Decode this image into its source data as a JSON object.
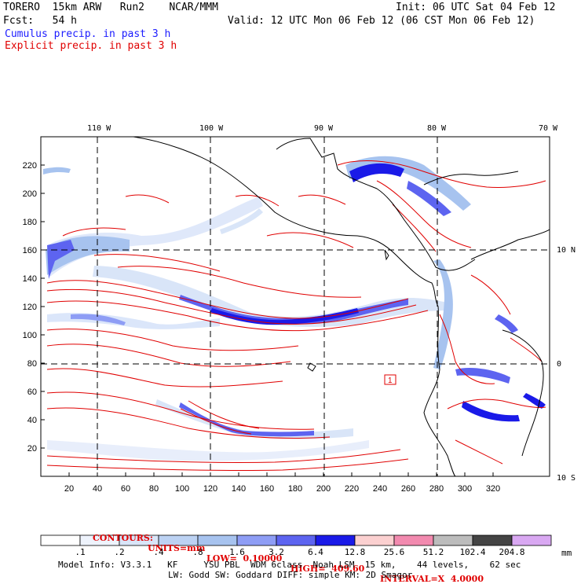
{
  "header": {
    "model": "TORERO  15km ARW   Run2    NCAR/MMM",
    "init": "Init: 06 UTC Sat 04 Feb 12",
    "fcst_label": "Fcst:   54 h",
    "valid": "Valid: 12 UTC Mon 06 Feb 12 (06 CST Mon 06 Feb 12)",
    "cumulus_label": "Cumulus precip. in past 3 h",
    "explicit_label": "Explicit precip. in past 3 h"
  },
  "map": {
    "lon_labels": [
      "110 W",
      "100 W",
      "90 W",
      "80 W",
      "70 W"
    ],
    "lat_labels": [
      "10 N",
      "0",
      "10 S"
    ],
    "y_ticks": [
      20,
      40,
      60,
      80,
      100,
      120,
      140,
      160,
      180,
      200,
      220
    ],
    "x_ticks": [
      20,
      40,
      60,
      80,
      100,
      120,
      140,
      160,
      180,
      200,
      220,
      240,
      260,
      280,
      300,
      320
    ],
    "box_label": "1"
  },
  "contour_info": {
    "contours": "CONTOURS:",
    "units": "UNITS=mm",
    "low": "LOW=  0.10000",
    "high": "HIGH=  409.60",
    "interval": "INTERVAL=X  4.0000"
  },
  "colorbar": {
    "labels": [
      ".1",
      ".2",
      ".4",
      ".8",
      "1.6",
      "3.2",
      "6.4",
      "12.8",
      "25.6",
      "51.2",
      "102.4",
      "204.8"
    ],
    "unit": "mm",
    "colors": [
      "#ffffff",
      "#eef3fc",
      "#d9e5f8",
      "#bcd2f3",
      "#a7c3ef",
      "#8e9df5",
      "#5d64f0",
      "#1a1ae8",
      "#fbd0d0",
      "#f28aaf",
      "#bcbcbc",
      "#444444",
      "#d9a8f2"
    ]
  },
  "model_info": {
    "line1": "Model Info: V3.3.1   KF     YSU PBL  WDM 6class  Noah LSM  15 km,    44 levels,    62 sec",
    "line2": "LW: Godd SW: Goddard DIFF: simple KM: 2D Smagor"
  },
  "palette": {
    "cumulus": "#1c1cff",
    "explicit": "#e00000"
  }
}
